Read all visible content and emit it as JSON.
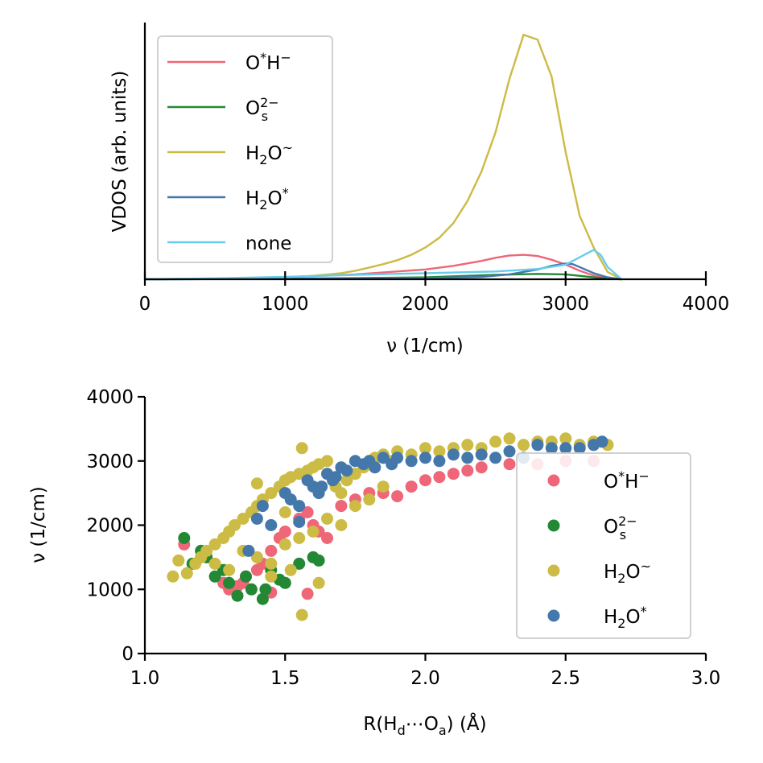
{
  "chart_data": [
    {
      "type": "line",
      "ylabel": "VDOS (arb. units)",
      "xlabel": "ν (1/cm)",
      "xlim": [
        0,
        4000
      ],
      "ylim": [
        0,
        1.05
      ],
      "xticks": [
        0,
        1000,
        2000,
        3000,
        4000
      ],
      "xtick_labels": [
        "0",
        "1000",
        "2000",
        "3000",
        "4000"
      ],
      "legend_position": "upper-left",
      "series": [
        {
          "name": "O*H⁻",
          "label_main": "O",
          "label_sup1": "*",
          "label_mid": "H",
          "label_sup2": "−",
          "color": "#ee6677",
          "x": [
            0,
            500,
            1000,
            1500,
            2000,
            2200,
            2400,
            2500,
            2600,
            2700,
            2800,
            2900,
            3000,
            3100,
            3200,
            3300,
            3400
          ],
          "y": [
            0.0,
            0.003,
            0.008,
            0.02,
            0.04,
            0.055,
            0.075,
            0.088,
            0.097,
            0.1,
            0.095,
            0.08,
            0.06,
            0.035,
            0.015,
            0.004,
            0.0
          ]
        },
        {
          "name": "O_s^2−",
          "label_main": "O",
          "label_sub": "s",
          "label_sup": "2−",
          "color": "#228833",
          "x": [
            0,
            1000,
            2000,
            2500,
            2800,
            3000,
            3100,
            3200,
            3300,
            3400
          ],
          "y": [
            0.0,
            0.002,
            0.008,
            0.018,
            0.022,
            0.02,
            0.014,
            0.008,
            0.003,
            0.0
          ]
        },
        {
          "name": "H2O~",
          "label_main": "H",
          "label_sub": "2",
          "label_mid": "O",
          "label_sup": "~",
          "color": "#ccbb44",
          "x": [
            0,
            400,
            800,
            1000,
            1200,
            1400,
            1500,
            1600,
            1700,
            1800,
            1900,
            2000,
            2100,
            2200,
            2300,
            2400,
            2500,
            2600,
            2700,
            2800,
            2900,
            3000,
            3100,
            3200,
            3300,
            3400
          ],
          "y": [
            0.0,
            0.002,
            0.005,
            0.008,
            0.014,
            0.025,
            0.035,
            0.048,
            0.062,
            0.078,
            0.1,
            0.13,
            0.17,
            0.23,
            0.32,
            0.44,
            0.6,
            0.82,
            1.0,
            0.98,
            0.83,
            0.52,
            0.26,
            0.13,
            0.03,
            0.0
          ]
        },
        {
          "name": "H2O*",
          "label_main": "H",
          "label_sub": "2",
          "label_mid": "O",
          "label_sup": "*",
          "color": "#4477aa",
          "x": [
            0,
            1000,
            2000,
            2400,
            2600,
            2800,
            2900,
            3000,
            3050,
            3100,
            3200,
            3300,
            3400
          ],
          "y": [
            0.0,
            0.002,
            0.005,
            0.01,
            0.02,
            0.04,
            0.055,
            0.065,
            0.062,
            0.05,
            0.025,
            0.008,
            0.0
          ]
        },
        {
          "name": "none",
          "label_main": "none",
          "color": "#66ccee",
          "x": [
            0,
            500,
            1000,
            1500,
            2000,
            2500,
            2800,
            3000,
            3100,
            3200,
            3250,
            3300,
            3400
          ],
          "y": [
            0.0,
            0.004,
            0.01,
            0.018,
            0.025,
            0.032,
            0.042,
            0.06,
            0.09,
            0.12,
            0.1,
            0.05,
            0.0
          ]
        }
      ]
    },
    {
      "type": "scatter",
      "xlabel": "R(H_d⋯O_a) (Å)",
      "xlabel_parts": {
        "r": "R(H",
        "d": "d",
        "dots": "⋯O",
        "a": "a",
        "unit": ") (Å)"
      },
      "ylabel": "ν (1/cm)",
      "xlim": [
        1.0,
        3.0
      ],
      "ylim": [
        0,
        4000
      ],
      "xticks": [
        1.0,
        1.5,
        2.0,
        2.5,
        3.0
      ],
      "xtick_labels": [
        "1.0",
        "1.5",
        "2.0",
        "2.5",
        "3.0"
      ],
      "yticks": [
        0,
        1000,
        2000,
        3000,
        4000
      ],
      "ytick_labels": [
        "0",
        "1000",
        "2000",
        "3000",
        "4000"
      ],
      "legend_position": "lower-right",
      "series": [
        {
          "name": "O*H⁻",
          "label_main": "O",
          "label_sup1": "*",
          "label_mid": "H",
          "label_sup2": "−",
          "color": "#ee6677",
          "x": [
            1.14,
            1.2,
            1.28,
            1.3,
            1.33,
            1.36,
            1.4,
            1.42,
            1.45,
            1.48,
            1.5,
            1.55,
            1.58,
            1.6,
            1.62,
            1.65,
            1.7,
            1.75,
            1.8,
            1.85,
            1.9,
            1.95,
            2.0,
            2.05,
            2.1,
            2.15,
            2.2,
            2.3,
            2.4,
            2.5,
            2.6,
            1.45,
            1.58,
            1.35
          ],
          "y": [
            1700,
            1500,
            1100,
            1000,
            1050,
            1200,
            1300,
            1400,
            1600,
            1800,
            1900,
            2100,
            2200,
            2000,
            1900,
            1800,
            2300,
            2400,
            2500,
            2500,
            2450,
            2600,
            2700,
            2750,
            2800,
            2850,
            2900,
            2950,
            2950,
            3000,
            3000,
            950,
            930,
            1100
          ]
        },
        {
          "name": "O_s^2−",
          "label_main": "O",
          "label_sub": "s",
          "label_sup": "2−",
          "color": "#228833",
          "x": [
            1.14,
            1.17,
            1.2,
            1.22,
            1.25,
            1.28,
            1.3,
            1.33,
            1.36,
            1.38,
            1.42,
            1.45,
            1.48,
            1.5,
            1.55,
            1.6,
            1.62,
            1.43
          ],
          "y": [
            1800,
            1400,
            1600,
            1500,
            1200,
            1300,
            1100,
            900,
            1200,
            1000,
            850,
            1300,
            1150,
            1100,
            1400,
            1500,
            1450,
            1000
          ]
        },
        {
          "name": "H2O~",
          "label_main": "H",
          "label_sub": "2",
          "label_mid": "O",
          "label_sup": "~",
          "color": "#ccbb44",
          "x": [
            1.1,
            1.12,
            1.15,
            1.18,
            1.2,
            1.22,
            1.25,
            1.28,
            1.3,
            1.32,
            1.35,
            1.38,
            1.4,
            1.42,
            1.45,
            1.48,
            1.5,
            1.52,
            1.55,
            1.56,
            1.58,
            1.6,
            1.62,
            1.65,
            1.68,
            1.7,
            1.72,
            1.75,
            1.78,
            1.8,
            1.82,
            1.85,
            1.88,
            1.9,
            1.95,
            2.0,
            2.05,
            2.1,
            2.15,
            2.2,
            2.25,
            2.3,
            2.35,
            2.4,
            2.45,
            2.5,
            2.55,
            2.6,
            2.65,
            1.35,
            1.4,
            1.45,
            1.5,
            1.55,
            1.6,
            1.65,
            1.3,
            1.25,
            1.2,
            1.45,
            1.52,
            1.56,
            1.62,
            1.7,
            1.75,
            1.8,
            1.85,
            1.4,
            1.5
          ],
          "y": [
            1200,
            1450,
            1250,
            1400,
            1500,
            1600,
            1700,
            1800,
            1900,
            2000,
            2100,
            2200,
            2300,
            2400,
            2500,
            2600,
            2700,
            2750,
            2800,
            3200,
            2850,
            2900,
            2950,
            3000,
            2600,
            2500,
            2700,
            2800,
            2900,
            3000,
            3050,
            3100,
            3000,
            3150,
            3100,
            3200,
            3150,
            3200,
            3250,
            3200,
            3300,
            3350,
            3250,
            3300,
            3300,
            3350,
            3250,
            3300,
            3250,
            1600,
            1500,
            1400,
            1700,
            1800,
            1900,
            2100,
            1300,
            1400,
            1500,
            1200,
            1300,
            600,
            1100,
            2000,
            2300,
            2400,
            2600,
            2650,
            2200
          ]
        },
        {
          "name": "H2O*",
          "label_main": "H",
          "label_sub": "2",
          "label_mid": "O",
          "label_sup": "*",
          "color": "#4477aa",
          "x": [
            1.4,
            1.45,
            1.5,
            1.52,
            1.55,
            1.58,
            1.6,
            1.62,
            1.65,
            1.68,
            1.7,
            1.72,
            1.75,
            1.78,
            1.8,
            1.82,
            1.85,
            1.88,
            1.9,
            1.95,
            2.0,
            2.05,
            2.1,
            2.15,
            2.2,
            2.25,
            2.3,
            2.35,
            2.4,
            2.45,
            2.5,
            2.55,
            2.6,
            2.63,
            1.37,
            1.42,
            1.55,
            1.63,
            1.67
          ],
          "y": [
            2100,
            2000,
            2500,
            2400,
            2300,
            2700,
            2600,
            2500,
            2800,
            2750,
            2900,
            2850,
            3000,
            2950,
            3000,
            2900,
            3050,
            2950,
            3050,
            3000,
            3050,
            3000,
            3100,
            3050,
            3100,
            3050,
            3150,
            3050,
            3250,
            3200,
            3200,
            3200,
            3250,
            3300,
            1600,
            2300,
            2050,
            2600,
            2700
          ]
        }
      ]
    }
  ]
}
